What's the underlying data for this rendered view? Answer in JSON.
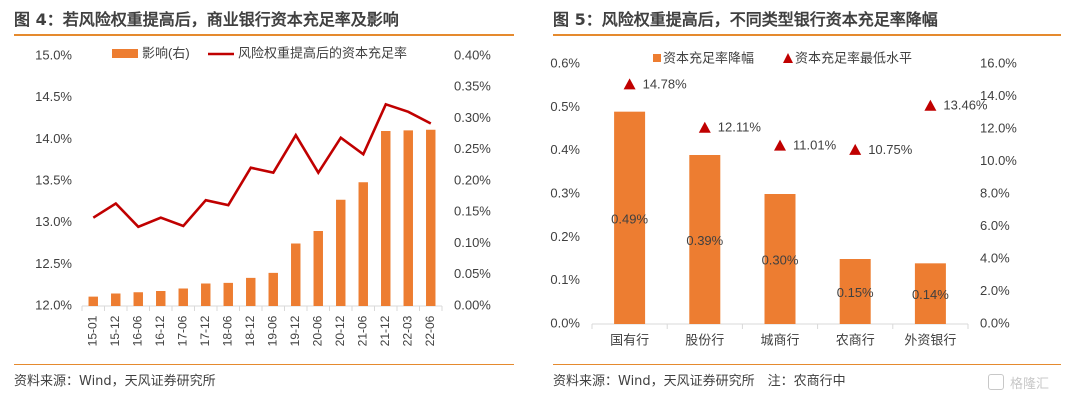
{
  "left_panel": {
    "title": "图 4：若风险权重提高后，商业银行资本充足率及影响",
    "source": "资料来源：Wind，天风证券研究所"
  },
  "right_panel": {
    "title": "图 5：风险权重提高后，不同类型银行资本充足率降幅",
    "source": "资料来源：Wind，天风证券研究所　注：农商行中"
  },
  "watermark": {
    "text": "格隆汇"
  },
  "colors": {
    "orange": "#ED7D31",
    "red": "#C00000",
    "title_rule": "#E58A2E",
    "axis": "#D9D9D9",
    "text": "#404040"
  },
  "chart_data": [
    {
      "type": "bar+line",
      "categories": [
        "15-01",
        "15-12",
        "16-06",
        "16-12",
        "17-06",
        "17-12",
        "18-06",
        "18-12",
        "19-06",
        "19-12",
        "20-06",
        "20-12",
        "21-06",
        "21-12",
        "22-03",
        "22-06"
      ],
      "series": [
        {
          "name": "影响(右)",
          "type": "bar",
          "axis": "right",
          "unit": "%",
          "values": [
            0.015,
            0.02,
            0.022,
            0.024,
            0.028,
            0.036,
            0.037,
            0.045,
            0.053,
            0.1,
            0.12,
            0.17,
            0.198,
            0.28,
            0.281,
            0.282
          ]
        },
        {
          "name": "风险权重提高后的资本充足率",
          "type": "line",
          "axis": "left",
          "unit": "%",
          "values": [
            13.06,
            13.23,
            12.95,
            13.06,
            12.96,
            13.27,
            13.21,
            13.66,
            13.6,
            14.05,
            13.6,
            14.02,
            13.82,
            14.42,
            14.33,
            14.19
          ]
        }
      ],
      "y_left": {
        "ticks": [
          "12.0%",
          "12.5%",
          "13.0%",
          "13.5%",
          "14.0%",
          "14.5%",
          "15.0%"
        ],
        "range": [
          12.0,
          15.0
        ]
      },
      "y_right": {
        "ticks": [
          "0.00%",
          "0.05%",
          "0.10%",
          "0.15%",
          "0.20%",
          "0.25%",
          "0.30%",
          "0.35%",
          "0.40%"
        ],
        "range": [
          0.0,
          0.4
        ]
      },
      "legend": "top"
    },
    {
      "type": "bar+scatter",
      "categories": [
        "国有行",
        "股份行",
        "城商行",
        "农商行",
        "外资银行"
      ],
      "series": [
        {
          "name": "资本充足率降幅",
          "type": "bar",
          "axis": "left",
          "unit": "%",
          "values": [
            0.49,
            0.39,
            0.3,
            0.15,
            0.14
          ],
          "labels": [
            "0.49%",
            "0.39%",
            "0.30%",
            "0.15%",
            "0.14%"
          ]
        },
        {
          "name": "资本充足率最低水平",
          "type": "scatter",
          "marker": "triangle",
          "axis": "right",
          "unit": "%",
          "values": [
            14.78,
            12.11,
            11.01,
            10.75,
            13.46
          ],
          "labels": [
            "14.78%",
            "12.11%",
            "11.01%",
            "10.75%",
            "13.46%"
          ]
        }
      ],
      "y_left": {
        "ticks": [
          "0.0%",
          "0.1%",
          "0.2%",
          "0.3%",
          "0.4%",
          "0.5%",
          "0.6%"
        ],
        "range": [
          0.0,
          0.6
        ]
      },
      "y_right": {
        "ticks": [
          "0.0%",
          "2.0%",
          "4.0%",
          "6.0%",
          "8.0%",
          "10.0%",
          "12.0%",
          "14.0%",
          "16.0%"
        ],
        "range": [
          0.0,
          16.0
        ]
      },
      "legend": "top"
    }
  ]
}
